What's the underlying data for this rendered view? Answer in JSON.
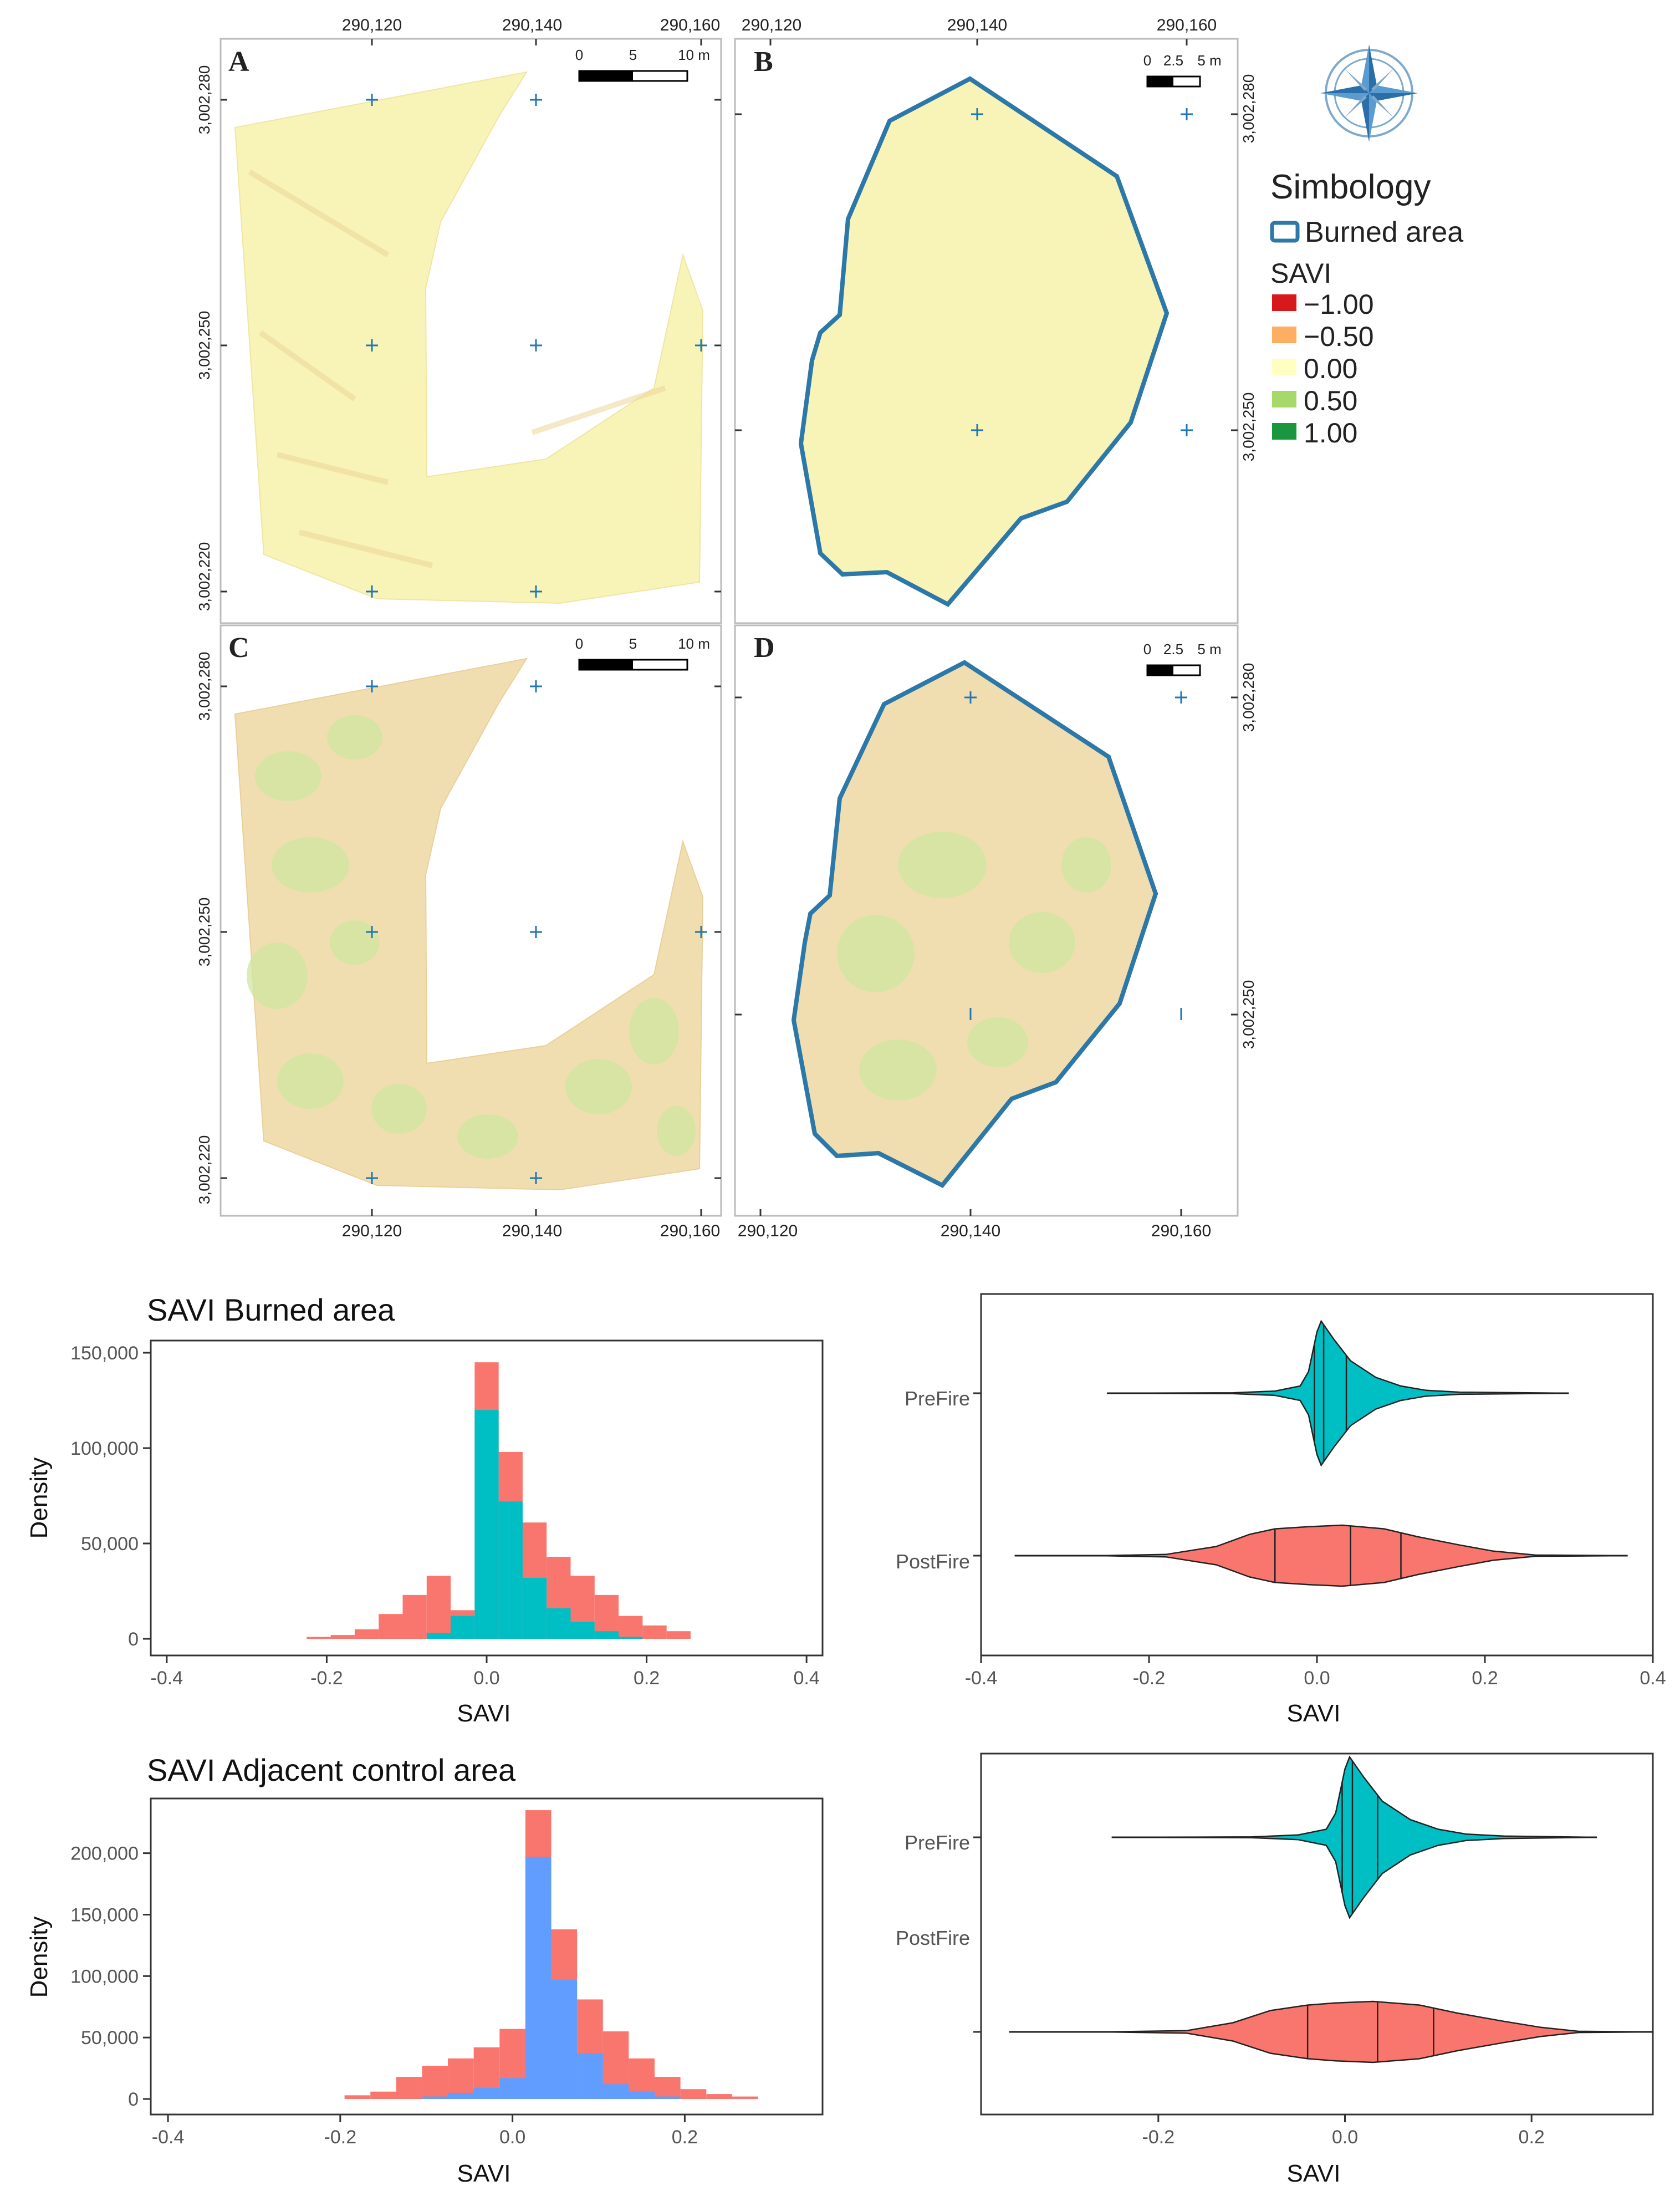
{
  "maps": {
    "panels": [
      {
        "letter": "A",
        "scale_labels": [
          "0",
          "5",
          "10 m"
        ]
      },
      {
        "letter": "B",
        "scale_labels": [
          "0",
          "2.5",
          "5 m"
        ]
      },
      {
        "letter": "C",
        "scale_labels": [
          "0",
          "5",
          "10 m"
        ]
      },
      {
        "letter": "D",
        "scale_labels": [
          "0",
          "2.5",
          "5 m"
        ]
      }
    ],
    "x_ticks": [
      "290,120",
      "290,140",
      "290,160"
    ],
    "y_ticks_left": [
      "3,002,280",
      "3,002,250",
      "3,002,220"
    ],
    "y_ticks_right": [
      "3,002,280",
      "3,002,250"
    ],
    "colors": {
      "pre": "#f8f3b6",
      "post": "#f1deb0",
      "border": "#2c78a8",
      "grid": "#1f77b4"
    }
  },
  "legend": {
    "title": "Simbology",
    "burned_area_label": "Burned area",
    "burned_area_color": "#2c78a8",
    "savi_label": "SAVI",
    "items": [
      {
        "label": "−1.00",
        "color": "#d7191c"
      },
      {
        "label": "−0.50",
        "color": "#fdae61"
      },
      {
        "label": "0.00",
        "color": "#ffffbf"
      },
      {
        "label": "0.50",
        "color": "#a6d96a"
      },
      {
        "label": "1.00",
        "color": "#1a9641"
      }
    ],
    "compass_icon": "compass-rose-icon"
  },
  "chart_data": [
    {
      "type": "bar",
      "title": "SAVI Burned area",
      "xlabel": "SAVI",
      "ylabel": "Density",
      "xlim": [
        -0.42,
        0.42
      ],
      "ylim": [
        0,
        150000
      ],
      "x_ticks": [
        "-0.4",
        "-0.2",
        "0.0",
        "0.2",
        "0.4"
      ],
      "y_ticks": [
        "0",
        "50,000",
        "100,000",
        "150,000"
      ],
      "bin_edges": [
        -0.225,
        -0.195,
        -0.165,
        -0.135,
        -0.105,
        -0.075,
        -0.045,
        -0.015,
        0.015,
        0.045,
        0.075,
        0.105,
        0.135,
        0.165,
        0.195,
        0.225,
        0.255
      ],
      "series": [
        {
          "values": [
            1000,
            2000,
            5000,
            13000,
            23000,
            33000,
            15000,
            145000,
            98000,
            61000,
            43000,
            33000,
            23000,
            12000,
            7000,
            4000
          ],
          "color": "#f8766d"
        },
        {
          "values": [
            0,
            0,
            0,
            0,
            0,
            3000,
            12000,
            120000,
            72000,
            32000,
            16000,
            9000,
            4000,
            1000,
            0,
            0
          ],
          "color": "#00bfc4"
        }
      ]
    },
    {
      "type": "violin",
      "xlabel": "SAVI",
      "xlim": [
        -0.4,
        0.4
      ],
      "x_ticks": [
        "-0.4",
        "-0.2",
        "0.0",
        "0.2",
        "0.4"
      ],
      "categories": [
        "PreFire",
        "PostFire"
      ],
      "series": [
        {
          "name": "PreFire",
          "color": "#00bfc4",
          "min": -0.25,
          "max": 0.3,
          "quartiles": [
            -0.003,
            0.008,
            0.035
          ],
          "profile": [
            [
              -0.25,
              0.0
            ],
            [
              -0.1,
              0.005
            ],
            [
              -0.05,
              0.03
            ],
            [
              -0.02,
              0.1
            ],
            [
              -0.01,
              0.3
            ],
            [
              0.0,
              0.85
            ],
            [
              0.005,
              1.0
            ],
            [
              0.02,
              0.75
            ],
            [
              0.04,
              0.45
            ],
            [
              0.07,
              0.22
            ],
            [
              0.1,
              0.1
            ],
            [
              0.13,
              0.04
            ],
            [
              0.17,
              0.015
            ],
            [
              0.3,
              0.0
            ]
          ]
        },
        {
          "name": "PostFire",
          "color": "#f8766d",
          "min": -0.36,
          "max": 0.37,
          "quartiles": [
            -0.05,
            0.04,
            0.1
          ],
          "profile": [
            [
              -0.36,
              0.0
            ],
            [
              -0.25,
              0.005
            ],
            [
              -0.18,
              0.04
            ],
            [
              -0.12,
              0.3
            ],
            [
              -0.08,
              0.7
            ],
            [
              -0.05,
              0.88
            ],
            [
              -0.01,
              0.95
            ],
            [
              0.03,
              1.0
            ],
            [
              0.08,
              0.88
            ],
            [
              0.12,
              0.62
            ],
            [
              0.17,
              0.35
            ],
            [
              0.21,
              0.15
            ],
            [
              0.26,
              0.02
            ],
            [
              0.37,
              0.0
            ]
          ]
        }
      ]
    },
    {
      "type": "bar",
      "title": "SAVI Adjacent control area",
      "xlabel": "SAVI",
      "ylabel": "Density",
      "xlim": [
        -0.42,
        0.36
      ],
      "ylim": [
        0,
        240000
      ],
      "x_ticks": [
        "-0.4",
        "-0.2",
        "0.0",
        "0.2"
      ],
      "y_ticks": [
        "0",
        "50,000",
        "100,000",
        "150,000",
        "200,000"
      ],
      "bin_edges": [
        -0.195,
        -0.165,
        -0.135,
        -0.105,
        -0.075,
        -0.045,
        -0.015,
        0.015,
        0.045,
        0.075,
        0.105,
        0.135,
        0.165,
        0.195,
        0.225,
        0.255,
        0.285
      ],
      "series": [
        {
          "values": [
            3000,
            6000,
            18000,
            27000,
            33000,
            42000,
            57000,
            235000,
            138000,
            81000,
            55000,
            33000,
            18000,
            8000,
            4000,
            2000
          ],
          "color": "#f8766d"
        },
        {
          "values": [
            0,
            0,
            0,
            2000,
            5000,
            9000,
            17000,
            197000,
            97000,
            37000,
            12000,
            6000,
            2000,
            0,
            0,
            0
          ],
          "color": "#619cff"
        }
      ]
    },
    {
      "type": "violin",
      "xlabel": "SAVI",
      "xlim": [
        -0.39,
        0.33
      ],
      "x_ticks": [
        "-0.2",
        "0.0",
        "0.2"
      ],
      "categories": [
        "PreFire",
        "PostFire"
      ],
      "series": [
        {
          "name": "PreFire",
          "color": "#00bfc4",
          "min": -0.25,
          "max": 0.27,
          "quartiles": [
            -0.003,
            0.008,
            0.035
          ],
          "profile": [
            [
              -0.25,
              0.0
            ],
            [
              -0.1,
              0.005
            ],
            [
              -0.05,
              0.03
            ],
            [
              -0.02,
              0.1
            ],
            [
              -0.01,
              0.3
            ],
            [
              0.0,
              0.85
            ],
            [
              0.005,
              1.0
            ],
            [
              0.02,
              0.75
            ],
            [
              0.04,
              0.45
            ],
            [
              0.07,
              0.22
            ],
            [
              0.1,
              0.1
            ],
            [
              0.13,
              0.04
            ],
            [
              0.17,
              0.015
            ],
            [
              0.27,
              0.0
            ]
          ]
        },
        {
          "name": "PostFire",
          "color": "#f8766d",
          "min": -0.36,
          "max": 0.33,
          "quartiles": [
            -0.04,
            0.035,
            0.095
          ],
          "profile": [
            [
              -0.36,
              0.0
            ],
            [
              -0.25,
              0.005
            ],
            [
              -0.17,
              0.04
            ],
            [
              -0.12,
              0.3
            ],
            [
              -0.08,
              0.7
            ],
            [
              -0.04,
              0.88
            ],
            [
              -0.01,
              0.95
            ],
            [
              0.03,
              1.0
            ],
            [
              0.08,
              0.88
            ],
            [
              0.12,
              0.62
            ],
            [
              0.17,
              0.35
            ],
            [
              0.21,
              0.15
            ],
            [
              0.25,
              0.02
            ],
            [
              0.33,
              0.0
            ]
          ]
        }
      ]
    }
  ]
}
